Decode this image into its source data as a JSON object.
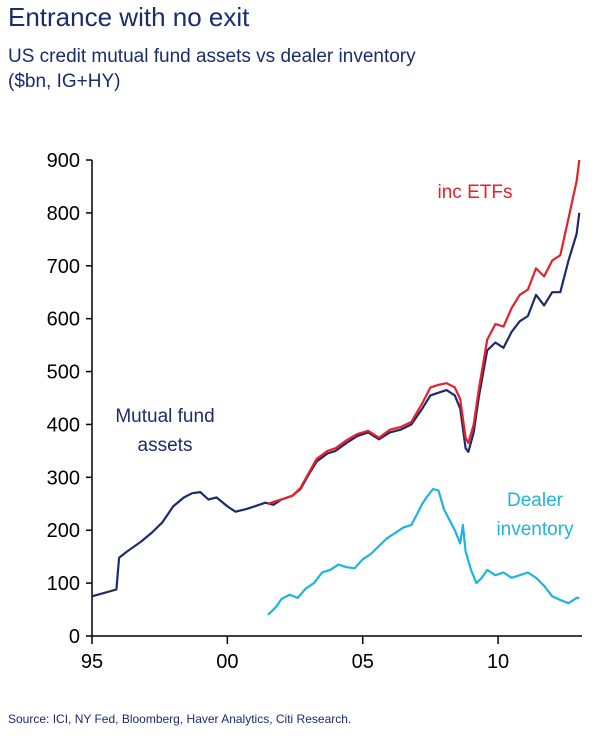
{
  "header": {
    "title": "Entrance with no exit",
    "subtitle_line1": "US credit mutual fund assets vs dealer inventory",
    "subtitle_line2": "($bn, IG+HY)"
  },
  "footer": {
    "source": "Source: ICI, NY Fed, Bloomberg, Haver Analytics, Citi Research."
  },
  "colors": {
    "mutual_fund": "#1f2a6b",
    "etf": "#e8202a",
    "dealer": "#1fb4dc",
    "axis": "#000000"
  },
  "chart_data": {
    "type": "line",
    "title": "Entrance with no exit",
    "subtitle": "US credit mutual fund assets vs dealer inventory ($bn, IG+HY)",
    "xlabel": "",
    "ylabel": "",
    "xlim": [
      1995.0,
      2013.1
    ],
    "ylim": [
      0,
      900
    ],
    "x_ticks": [
      1995,
      2000,
      2005,
      2010
    ],
    "x_tick_labels": [
      "95",
      "00",
      "05",
      "10"
    ],
    "y_ticks": [
      0,
      100,
      200,
      300,
      400,
      500,
      600,
      700,
      800,
      900
    ],
    "y_tick_labels": [
      "0",
      "100",
      "200",
      "300",
      "400",
      "500",
      "600",
      "700",
      "800",
      "900"
    ],
    "grid": false,
    "annotations": [
      {
        "series": "Mutual fund assets",
        "line1": "Mutual fund",
        "line2": "assets"
      },
      {
        "series": "inc ETFs",
        "line1": "inc ETFs",
        "line2": ""
      },
      {
        "series": "Dealer inventory",
        "line1": "Dealer",
        "line2": "inventory"
      }
    ],
    "series": [
      {
        "name": "Mutual fund assets",
        "color": "#1f2a6b",
        "x": [
          1995.0,
          1995.5,
          1995.9,
          1996.0,
          1996.3,
          1996.8,
          1997.2,
          1997.6,
          1998.0,
          1998.4,
          1998.7,
          1999.0,
          1999.3,
          1999.6,
          2000.0,
          2000.3,
          2000.7,
          2001.0,
          2001.4,
          2001.7,
          2002.0,
          2002.4,
          2002.7,
          2003.0,
          2003.3,
          2003.7,
          2004.0,
          2004.4,
          2004.8,
          2005.2,
          2005.6,
          2006.0,
          2006.4,
          2006.8,
          2007.2,
          2007.5,
          2007.8,
          2008.1,
          2008.4,
          2008.6,
          2008.8,
          2008.9,
          2009.1,
          2009.3,
          2009.6,
          2009.9,
          2010.2,
          2010.5,
          2010.8,
          2011.1,
          2011.4,
          2011.7,
          2012.0,
          2012.3,
          2012.6,
          2012.9,
          2013.0
        ],
        "y": [
          75,
          82,
          88,
          148,
          160,
          178,
          195,
          215,
          245,
          262,
          270,
          272,
          258,
          262,
          245,
          235,
          240,
          245,
          252,
          248,
          258,
          265,
          278,
          305,
          330,
          345,
          350,
          365,
          378,
          385,
          372,
          385,
          390,
          400,
          430,
          455,
          460,
          465,
          455,
          430,
          355,
          348,
          385,
          455,
          540,
          555,
          545,
          575,
          595,
          605,
          645,
          625,
          650,
          650,
          710,
          760,
          800
        ]
      },
      {
        "name": "inc ETFs",
        "color": "#e8202a",
        "x": [
          2001.5,
          2001.8,
          2002.1,
          2002.4,
          2002.7,
          2003.0,
          2003.3,
          2003.7,
          2004.0,
          2004.4,
          2004.8,
          2005.2,
          2005.6,
          2006.0,
          2006.4,
          2006.8,
          2007.2,
          2007.5,
          2007.8,
          2008.1,
          2008.4,
          2008.6,
          2008.8,
          2008.9,
          2009.1,
          2009.3,
          2009.6,
          2009.9,
          2010.2,
          2010.5,
          2010.8,
          2011.1,
          2011.4,
          2011.7,
          2012.0,
          2012.3,
          2012.6,
          2012.9,
          2013.0
        ],
        "y": [
          250,
          255,
          260,
          265,
          280,
          308,
          335,
          350,
          355,
          370,
          382,
          388,
          375,
          390,
          395,
          405,
          440,
          470,
          475,
          478,
          470,
          448,
          375,
          365,
          400,
          470,
          560,
          590,
          585,
          620,
          645,
          655,
          695,
          680,
          710,
          720,
          790,
          860,
          900
        ]
      },
      {
        "name": "Dealer inventory",
        "color": "#1fb4dc",
        "x": [
          2001.5,
          2001.8,
          2002.0,
          2002.3,
          2002.6,
          2002.9,
          2003.2,
          2003.5,
          2003.8,
          2004.1,
          2004.4,
          2004.7,
          2005.0,
          2005.3,
          2005.6,
          2005.9,
          2006.2,
          2006.5,
          2006.8,
          2007.0,
          2007.2,
          2007.4,
          2007.6,
          2007.8,
          2008.0,
          2008.2,
          2008.4,
          2008.6,
          2008.7,
          2008.8,
          2009.0,
          2009.2,
          2009.4,
          2009.6,
          2009.9,
          2010.2,
          2010.5,
          2010.8,
          2011.1,
          2011.4,
          2011.7,
          2012.0,
          2012.3,
          2012.6,
          2012.9,
          2013.0
        ],
        "y": [
          40,
          55,
          70,
          78,
          72,
          90,
          100,
          120,
          125,
          135,
          130,
          128,
          145,
          155,
          170,
          185,
          195,
          205,
          210,
          230,
          250,
          265,
          278,
          275,
          240,
          220,
          200,
          175,
          210,
          160,
          125,
          100,
          110,
          125,
          115,
          120,
          110,
          115,
          120,
          110,
          95,
          75,
          68,
          62,
          72,
          72
        ]
      }
    ]
  }
}
